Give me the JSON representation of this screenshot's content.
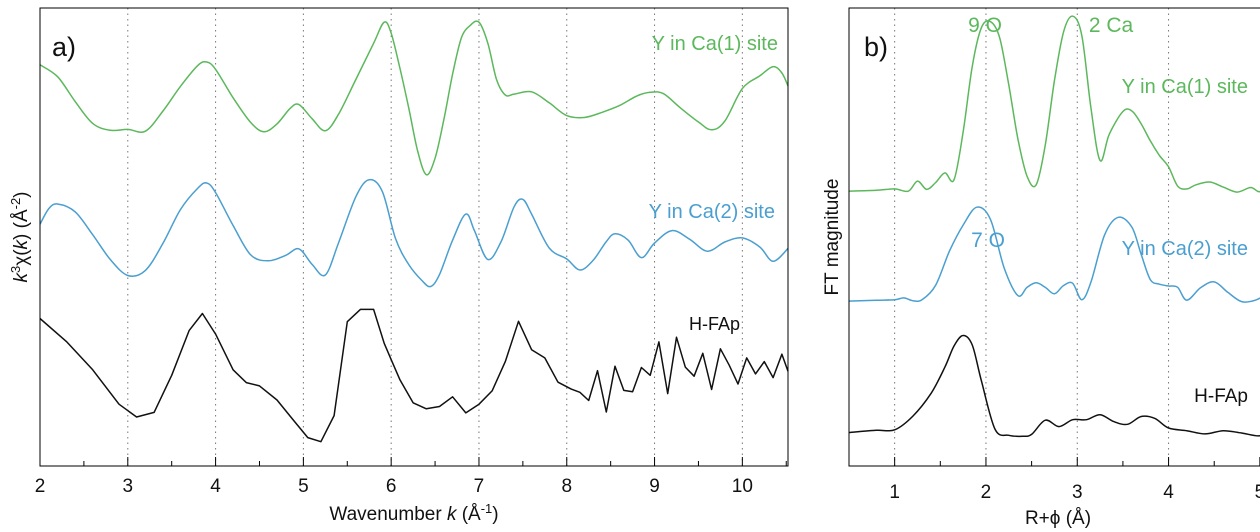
{
  "chart_data": [
    {
      "panel_label": "a)",
      "type": "line",
      "xlabel_prefix": "Wavenumber ",
      "xlabel_var": "k",
      "xlabel_unit": " (Å",
      "xlabel_exp": "-1",
      "xlabel_close": ")",
      "ylabel_k": "k",
      "ylabel_exp": "3",
      "ylabel_mid": "χ(",
      "ylabel_k2": "k",
      "ylabel_unit": ") (Å",
      "ylabel_unit_exp": "-2",
      "ylabel_close": ")",
      "xlim": [
        2,
        10.52
      ],
      "xticks": [
        2,
        3,
        4,
        5,
        6,
        7,
        8,
        9,
        10
      ],
      "xtick_labels": [
        "2",
        "3",
        "4",
        "5",
        "6",
        "7",
        "8",
        "9",
        "10"
      ],
      "ylim": [
        0,
        1
      ],
      "grid_x": [
        3,
        4,
        5,
        6,
        7,
        8,
        9,
        10
      ],
      "grid_style": "dotted vertical",
      "series": [
        {
          "name": "Y in Ca(1) site",
          "color": "#5cb85c",
          "x": [
            2.0,
            2.2,
            2.4,
            2.6,
            2.8,
            3.0,
            3.2,
            3.4,
            3.6,
            3.8,
            3.9,
            4.0,
            4.2,
            4.4,
            4.55,
            4.7,
            4.85,
            4.95,
            5.1,
            5.25,
            5.4,
            5.6,
            5.8,
            5.92,
            6.0,
            6.1,
            6.2,
            6.3,
            6.4,
            6.5,
            6.6,
            6.7,
            6.8,
            6.9,
            7.0,
            7.1,
            7.2,
            7.3,
            7.4,
            7.6,
            7.8,
            8.0,
            8.2,
            8.4,
            8.6,
            8.8,
            8.95,
            9.1,
            9.3,
            9.5,
            9.65,
            9.8,
            10.0,
            10.2,
            10.35,
            10.45,
            10.52
          ],
          "y": [
            0.876,
            0.85,
            0.796,
            0.748,
            0.733,
            0.735,
            0.731,
            0.775,
            0.829,
            0.875,
            0.882,
            0.866,
            0.804,
            0.75,
            0.73,
            0.747,
            0.781,
            0.789,
            0.758,
            0.732,
            0.768,
            0.845,
            0.923,
            0.969,
            0.945,
            0.868,
            0.782,
            0.689,
            0.636,
            0.672,
            0.756,
            0.856,
            0.935,
            0.962,
            0.969,
            0.924,
            0.844,
            0.81,
            0.812,
            0.817,
            0.793,
            0.765,
            0.761,
            0.772,
            0.787,
            0.808,
            0.816,
            0.813,
            0.781,
            0.751,
            0.734,
            0.753,
            0.824,
            0.852,
            0.872,
            0.858,
            0.83
          ]
        },
        {
          "name": "Y in Ca(2) site",
          "color": "#4a9fd0",
          "x": [
            2.0,
            2.1,
            2.2,
            2.4,
            2.6,
            2.8,
            3.0,
            3.2,
            3.4,
            3.6,
            3.8,
            3.9,
            4.0,
            4.2,
            4.4,
            4.6,
            4.8,
            4.95,
            5.1,
            5.25,
            5.4,
            5.6,
            5.75,
            5.9,
            6.05,
            6.2,
            6.35,
            6.45,
            6.55,
            6.7,
            6.85,
            6.95,
            7.1,
            7.25,
            7.4,
            7.5,
            7.6,
            7.8,
            8.0,
            8.15,
            8.3,
            8.45,
            8.55,
            8.7,
            8.85,
            9.0,
            9.2,
            9.4,
            9.6,
            9.8,
            10.0,
            10.2,
            10.35,
            10.52
          ],
          "y": [
            0.528,
            0.562,
            0.572,
            0.555,
            0.505,
            0.451,
            0.416,
            0.427,
            0.486,
            0.56,
            0.607,
            0.618,
            0.597,
            0.525,
            0.461,
            0.448,
            0.46,
            0.474,
            0.44,
            0.417,
            0.487,
            0.589,
            0.625,
            0.599,
            0.496,
            0.44,
            0.405,
            0.392,
            0.418,
            0.493,
            0.55,
            0.513,
            0.451,
            0.489,
            0.566,
            0.582,
            0.55,
            0.476,
            0.452,
            0.428,
            0.449,
            0.49,
            0.507,
            0.493,
            0.455,
            0.487,
            0.514,
            0.495,
            0.469,
            0.489,
            0.498,
            0.478,
            0.447,
            0.475
          ]
        },
        {
          "name": "H-FAp",
          "color": "#111111",
          "x": [
            2.0,
            2.3,
            2.6,
            2.9,
            3.1,
            3.3,
            3.5,
            3.7,
            3.85,
            4.0,
            4.2,
            4.35,
            4.5,
            4.7,
            4.9,
            5.05,
            5.2,
            5.35,
            5.5,
            5.65,
            5.8,
            5.92,
            6.0,
            6.1,
            6.25,
            6.4,
            6.55,
            6.7,
            6.85,
            7.0,
            7.15,
            7.3,
            7.45,
            7.6,
            7.75,
            7.9,
            8.05,
            8.15,
            8.25,
            8.35,
            8.45,
            8.55,
            8.65,
            8.75,
            8.85,
            8.95,
            9.05,
            9.15,
            9.25,
            9.35,
            9.45,
            9.55,
            9.65,
            9.75,
            9.85,
            9.95,
            10.05,
            10.15,
            10.25,
            10.35,
            10.45,
            10.52
          ],
          "y": [
            0.322,
            0.272,
            0.21,
            0.135,
            0.107,
            0.117,
            0.198,
            0.296,
            0.333,
            0.288,
            0.21,
            0.182,
            0.175,
            0.144,
            0.097,
            0.062,
            0.053,
            0.11,
            0.315,
            0.342,
            0.342,
            0.268,
            0.232,
            0.188,
            0.138,
            0.125,
            0.13,
            0.151,
            0.116,
            0.135,
            0.164,
            0.228,
            0.316,
            0.254,
            0.236,
            0.183,
            0.168,
            0.161,
            0.143,
            0.208,
            0.118,
            0.218,
            0.165,
            0.162,
            0.215,
            0.198,
            0.271,
            0.158,
            0.281,
            0.216,
            0.196,
            0.246,
            0.167,
            0.256,
            0.22,
            0.179,
            0.236,
            0.201,
            0.228,
            0.193,
            0.244,
            0.207
          ]
        }
      ],
      "labels": [
        {
          "text": "Y in Ca(1) site",
          "color": "#5cb85c"
        },
        {
          "text": "Y in Ca(2) site",
          "color": "#4a9fd0"
        },
        {
          "text": "H-FAp",
          "color": "#111111"
        }
      ]
    },
    {
      "panel_label": "b)",
      "type": "line",
      "xlabel": "R+ϕ (Å)",
      "ylabel": "FT magnitude",
      "xlim": [
        0.5,
        5.1
      ],
      "xticks": [
        1,
        2,
        3,
        4,
        5
      ],
      "xtick_labels": [
        "1",
        "2",
        "3",
        "4",
        "5"
      ],
      "ylim": [
        0,
        1
      ],
      "grid_x": [
        1,
        2,
        3,
        4
      ],
      "grid_style": "dotted vertical",
      "series": [
        {
          "name": "Y in Ca(1) site",
          "color": "#5cb85c",
          "x": [
            0.5,
            0.8,
            1.0,
            1.15,
            1.25,
            1.35,
            1.45,
            1.55,
            1.65,
            1.75,
            1.85,
            1.95,
            2.05,
            2.15,
            2.25,
            2.35,
            2.45,
            2.55,
            2.65,
            2.75,
            2.85,
            2.95,
            3.05,
            3.15,
            3.25,
            3.35,
            3.5,
            3.6,
            3.7,
            3.8,
            3.9,
            4.0,
            4.1,
            4.2,
            4.3,
            4.45,
            4.6,
            4.75,
            4.9,
            5.0,
            5.1
          ],
          "y": [
            0.6,
            0.602,
            0.605,
            0.6,
            0.622,
            0.604,
            0.619,
            0.64,
            0.625,
            0.729,
            0.873,
            0.957,
            0.97,
            0.935,
            0.832,
            0.714,
            0.633,
            0.614,
            0.701,
            0.841,
            0.948,
            0.982,
            0.94,
            0.781,
            0.667,
            0.724,
            0.774,
            0.775,
            0.747,
            0.71,
            0.678,
            0.653,
            0.611,
            0.605,
            0.614,
            0.62,
            0.609,
            0.598,
            0.608,
            0.599,
            0.62
          ]
        },
        {
          "name": "Y in Ca(2) site",
          "color": "#4a9fd0",
          "x": [
            0.5,
            0.8,
            1.0,
            1.1,
            1.2,
            1.3,
            1.45,
            1.6,
            1.75,
            1.9,
            2.05,
            2.2,
            2.35,
            2.45,
            2.55,
            2.65,
            2.75,
            2.85,
            2.95,
            3.05,
            3.15,
            3.3,
            3.45,
            3.6,
            3.7,
            3.8,
            3.9,
            4.0,
            4.1,
            4.2,
            4.35,
            4.5,
            4.65,
            4.8,
            4.95,
            5.1
          ],
          "y": [
            0.36,
            0.362,
            0.363,
            0.367,
            0.361,
            0.363,
            0.395,
            0.469,
            0.526,
            0.565,
            0.538,
            0.432,
            0.372,
            0.39,
            0.4,
            0.39,
            0.376,
            0.394,
            0.399,
            0.363,
            0.402,
            0.505,
            0.543,
            0.521,
            0.462,
            0.407,
            0.397,
            0.393,
            0.39,
            0.362,
            0.389,
            0.402,
            0.379,
            0.359,
            0.362,
            0.378
          ]
        },
        {
          "name": "H-FAp",
          "color": "#111111",
          "x": [
            0.5,
            0.8,
            1.0,
            1.2,
            1.4,
            1.55,
            1.65,
            1.75,
            1.85,
            1.95,
            2.1,
            2.25,
            2.4,
            2.5,
            2.65,
            2.8,
            2.95,
            3.1,
            3.25,
            3.4,
            3.55,
            3.7,
            3.85,
            4.0,
            4.2,
            4.4,
            4.6,
            4.8,
            5.0,
            5.1
          ],
          "y": [
            0.073,
            0.078,
            0.079,
            0.109,
            0.159,
            0.216,
            0.262,
            0.285,
            0.264,
            0.186,
            0.08,
            0.067,
            0.065,
            0.069,
            0.1,
            0.086,
            0.101,
            0.101,
            0.112,
            0.097,
            0.091,
            0.108,
            0.104,
            0.083,
            0.077,
            0.07,
            0.077,
            0.072,
            0.066,
            0.08
          ]
        }
      ],
      "labels": [
        {
          "text": "Y in Ca(1) site",
          "color": "#5cb85c"
        },
        {
          "text": "Y in Ca(2) site",
          "color": "#4a9fd0"
        },
        {
          "text": "H-FAp",
          "color": "#111111"
        }
      ],
      "annotations": [
        {
          "text": "9 O",
          "color": "#5cb85c",
          "x": 2.05
        },
        {
          "text": "2 Ca",
          "color": "#5cb85c",
          "x": 3.05
        },
        {
          "text": "7 O",
          "color": "#4a9fd0",
          "x": 1.9
        }
      ]
    }
  ]
}
